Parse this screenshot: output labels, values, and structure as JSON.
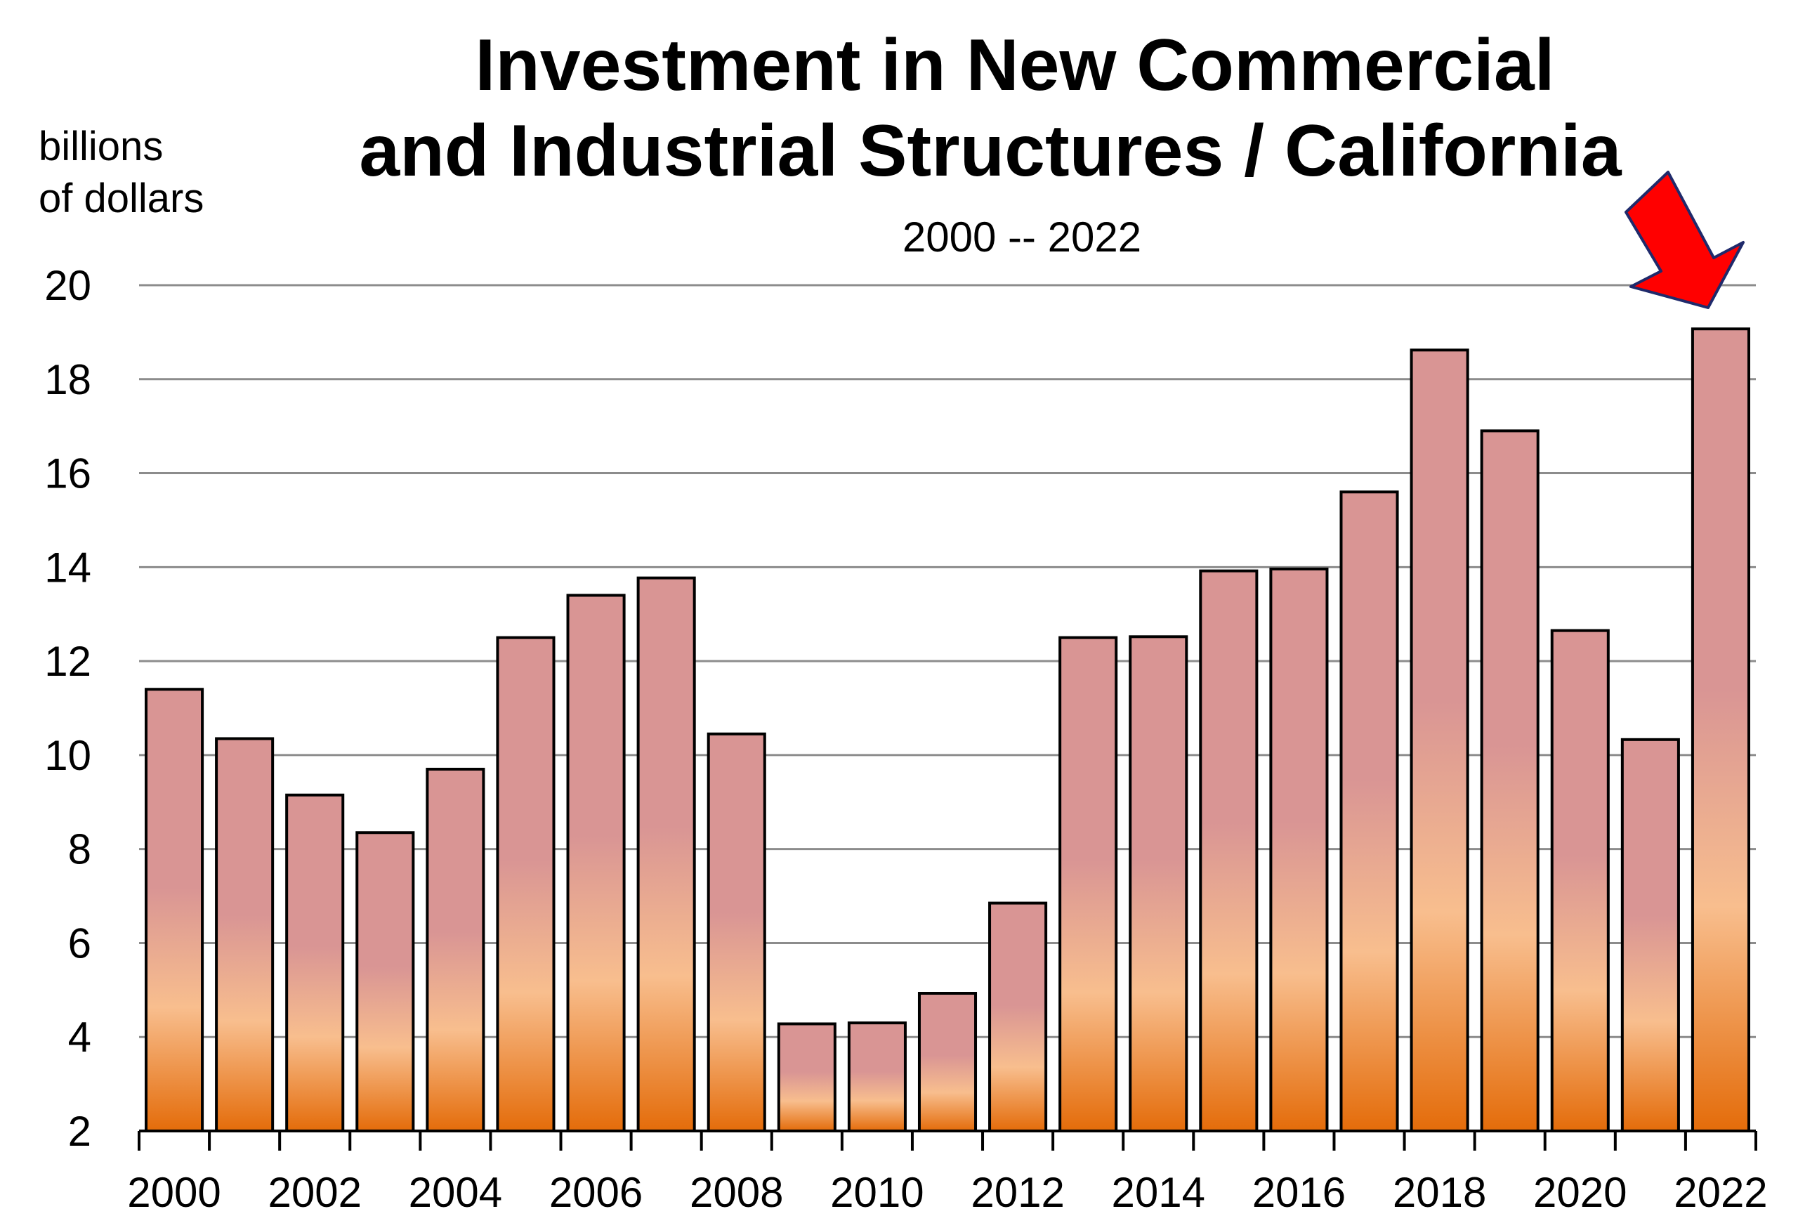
{
  "chart_data": {
    "type": "bar",
    "title_lines": [
      "Investment in New Commercial",
      "and Industrial Structures / California"
    ],
    "subtitle": "2000 -- 2022",
    "ylabel_lines": [
      "billions",
      "of dollars"
    ],
    "xlabel": "",
    "categories": [
      "2000",
      "2001",
      "2002",
      "2003",
      "2004",
      "2005",
      "2006",
      "2007",
      "2008",
      "2009",
      "2010",
      "2011",
      "2012",
      "2013",
      "2014",
      "2015",
      "2016",
      "2017",
      "2018",
      "2019",
      "2020",
      "2021",
      "2022"
    ],
    "x_tick_labels": [
      "2000",
      "2002",
      "2004",
      "2006",
      "2008",
      "2010",
      "2012",
      "2014",
      "2016",
      "2018",
      "2020",
      "2022"
    ],
    "values": [
      11.4,
      10.35,
      9.15,
      8.35,
      9.7,
      12.5,
      13.4,
      13.77,
      10.45,
      4.28,
      4.3,
      4.93,
      6.85,
      12.5,
      12.52,
      13.92,
      13.96,
      15.6,
      18.62,
      16.9,
      12.65,
      10.33,
      19.07
    ],
    "ylim": [
      2,
      20
    ],
    "yticks": [
      2,
      4,
      6,
      8,
      10,
      12,
      14,
      16,
      18,
      20
    ],
    "grid": true,
    "legend": "none",
    "highlight": {
      "category": "2022",
      "marker": "red arrow"
    },
    "colors": {
      "bar_top": "#d99594",
      "bar_mid": "#f8be8e",
      "bar_bottom": "#e46c0a",
      "arrow_fill": "#ff0000",
      "arrow_stroke": "#1f2a6b"
    }
  }
}
